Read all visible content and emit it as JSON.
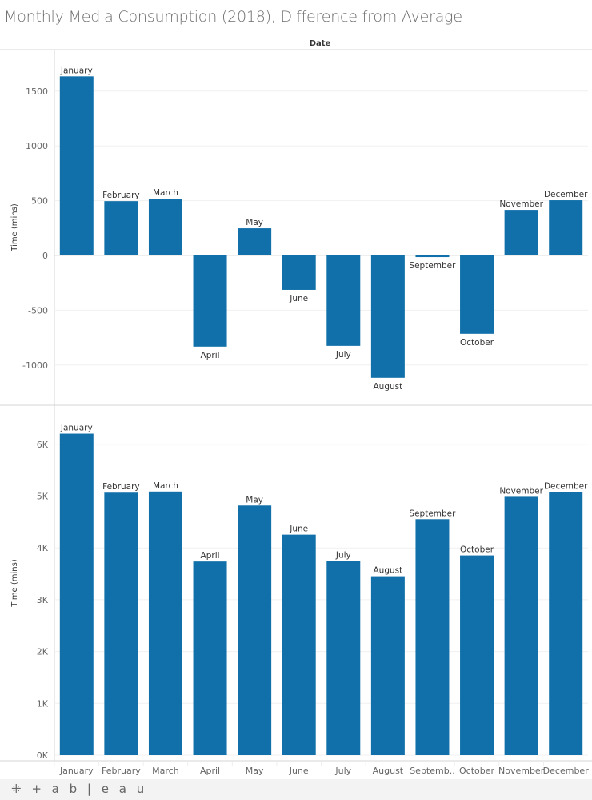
{
  "title": "Monthly Media Consumption (2018), Difference from Average",
  "footer": {
    "logo": "⁜ + a b | e a u",
    "logo_text": "tableau"
  },
  "colors": {
    "bar": "#1170aa",
    "axis_text": "#666666",
    "grid": "#f0f0f0",
    "border": "#d4d4d4"
  },
  "chart_data": [
    {
      "type": "bar",
      "column_header": "Date",
      "ylabel": "Time (mins)",
      "ylim": [
        -1250,
        1750
      ],
      "yticks": [
        -1000,
        -500,
        0,
        500,
        1000,
        1500
      ],
      "ytick_labels": [
        "-1000",
        "-500",
        "0",
        "500",
        "1000",
        "1500"
      ],
      "grid": true,
      "categories": [
        "January",
        "February",
        "March",
        "April",
        "May",
        "June",
        "July",
        "August",
        "September",
        "October",
        "November",
        "December"
      ],
      "values": [
        1635,
        496,
        518,
        -832,
        248,
        -314,
        -825,
        -1117,
        -15,
        -715,
        416,
        504
      ],
      "data_labels": [
        "January",
        "February",
        "March",
        "April",
        "May",
        "June",
        "July",
        "August",
        "September",
        "October",
        "November",
        "December"
      ]
    },
    {
      "type": "bar",
      "ylabel": "Time (mins)",
      "ylim": [
        0,
        6.2
      ],
      "yticks": [
        0,
        1,
        2,
        3,
        4,
        5,
        6
      ],
      "ytick_labels": [
        "0K",
        "1K",
        "2K",
        "3K",
        "4K",
        "5K",
        "6K"
      ],
      "grid": true,
      "categories": [
        "January",
        "February",
        "March",
        "April",
        "May",
        "June",
        "July",
        "August",
        "September",
        "October",
        "November",
        "December"
      ],
      "xtick_labels": [
        "January",
        "February",
        "March",
        "April",
        "May",
        "June",
        "July",
        "August",
        "Septemb..",
        "October",
        "November",
        "December"
      ],
      "values": [
        6205,
        5066,
        5088,
        3738,
        4818,
        4256,
        3745,
        3453,
        4555,
        3855,
        4986,
        5074
      ],
      "data_labels": [
        "January",
        "February",
        "March",
        "April",
        "May",
        "June",
        "July",
        "August",
        "September",
        "October",
        "November",
        "December"
      ]
    }
  ]
}
